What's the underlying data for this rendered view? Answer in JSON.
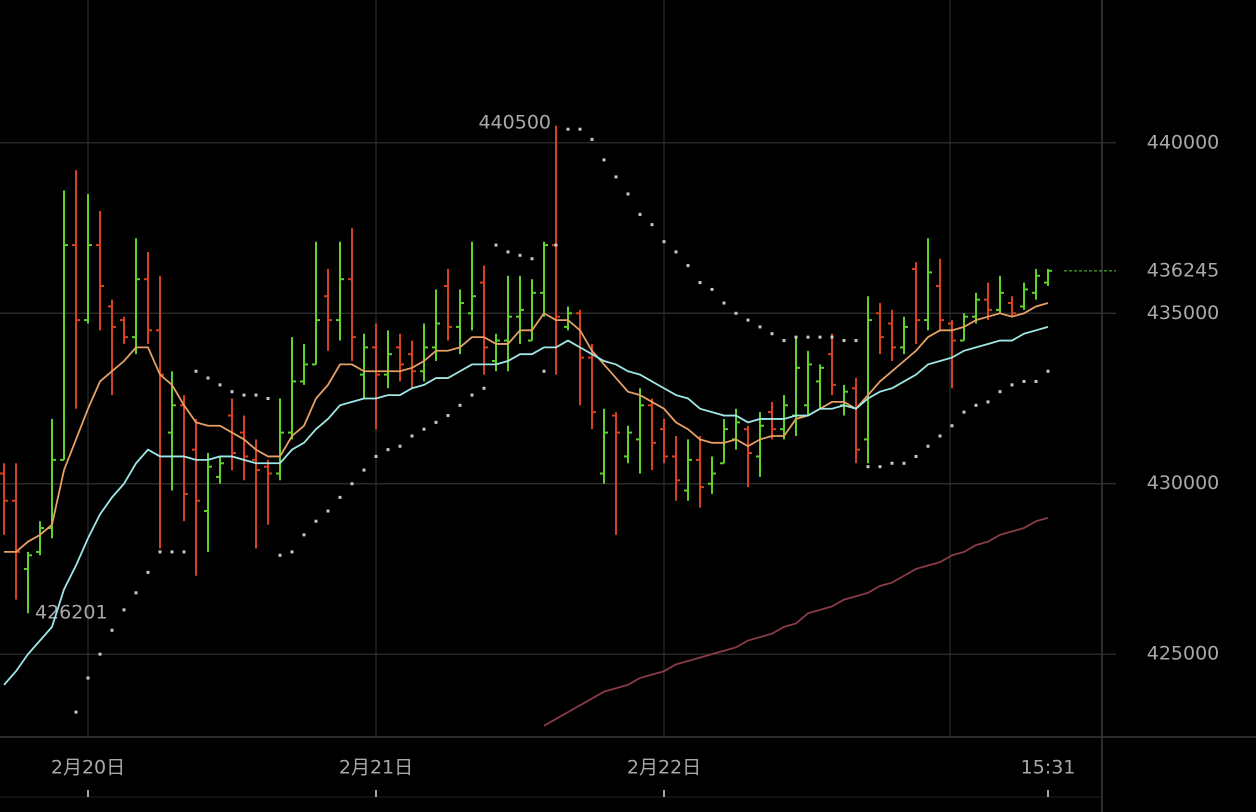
{
  "chart_data": {
    "type": "ohlc",
    "categories": [
      null,
      null,
      null,
      null,
      null,
      null,
      null,
      "2月20日",
      null,
      null,
      null,
      null,
      null,
      null,
      null,
      null,
      null,
      null,
      null,
      null,
      null,
      null,
      null,
      null,
      null,
      null,
      null,
      null,
      null,
      null,
      null,
      "2月21日",
      null,
      null,
      null,
      null,
      null,
      null,
      null,
      null,
      null,
      null,
      null,
      null,
      null,
      null,
      null,
      null,
      null,
      null,
      null,
      null,
      null,
      null,
      null,
      "2月22日",
      null,
      null,
      null,
      null,
      null,
      null,
      null,
      null,
      null,
      null,
      null,
      null,
      null,
      null,
      null,
      null,
      null,
      null,
      null,
      null,
      null,
      null,
      null,
      null,
      null,
      null,
      null,
      null,
      null,
      null,
      null,
      "15:31"
    ],
    "ohlc": [
      [
        430300,
        430600,
        428500,
        429500
      ],
      [
        429500,
        430600,
        426600,
        428000
      ],
      [
        427500,
        428000,
        426201,
        427900
      ],
      [
        428000,
        428900,
        427900,
        428700
      ],
      [
        428700,
        431900,
        428400,
        430700
      ],
      [
        430700,
        438600,
        430700,
        437000
      ],
      [
        437000,
        439200,
        432200,
        434800
      ],
      [
        434800,
        438500,
        434700,
        437000
      ],
      [
        437000,
        438000,
        434500,
        435800
      ],
      [
        435200,
        435400,
        432600,
        434600
      ],
      [
        434800,
        434900,
        434100,
        434300
      ],
      [
        434300,
        437200,
        433800,
        436000
      ],
      [
        436000,
        436800,
        434100,
        434500
      ],
      [
        434500,
        436100,
        428100,
        433200
      ],
      [
        431500,
        433300,
        429800,
        432300
      ],
      [
        432300,
        432600,
        428900,
        429700
      ],
      [
        431000,
        431900,
        427300,
        429500
      ],
      [
        429200,
        430900,
        428000,
        430500
      ],
      [
        430200,
        430800,
        430000,
        430600
      ],
      [
        432000,
        432500,
        430400,
        430900
      ],
      [
        431500,
        432000,
        430100,
        430800
      ],
      [
        430700,
        431300,
        428100,
        430400
      ],
      [
        430500,
        430700,
        428800,
        430300
      ],
      [
        430300,
        432500,
        430100,
        431500
      ],
      [
        431500,
        434300,
        431300,
        433000
      ],
      [
        433000,
        434100,
        432900,
        433500
      ],
      [
        433500,
        437100,
        433500,
        434800
      ],
      [
        435500,
        436300,
        433900,
        434800
      ],
      [
        434800,
        437100,
        434200,
        436000
      ],
      [
        436000,
        437500,
        433600,
        434300
      ],
      [
        433200,
        434400,
        432500,
        434000
      ],
      [
        434000,
        434700,
        431600,
        433200
      ],
      [
        433200,
        434500,
        432800,
        433800
      ],
      [
        434000,
        434400,
        433000,
        433500
      ],
      [
        433800,
        434200,
        432800,
        433300
      ],
      [
        433300,
        434700,
        433000,
        434000
      ],
      [
        434000,
        435700,
        433600,
        434700
      ],
      [
        435800,
        436300,
        434200,
        434600
      ],
      [
        434600,
        435700,
        433800,
        435300
      ],
      [
        435000,
        437100,
        434500,
        435500
      ],
      [
        435900,
        436400,
        433200,
        434000
      ],
      [
        433600,
        434400,
        433300,
        434200
      ],
      [
        434200,
        436100,
        433300,
        434900
      ],
      [
        434900,
        436100,
        434100,
        435100
      ],
      [
        434200,
        436000,
        434200,
        435600
      ],
      [
        435600,
        437100,
        434900,
        437000
      ],
      [
        437000,
        440500,
        433200,
        434900
      ],
      [
        434600,
        435200,
        434500,
        435000
      ],
      [
        435000,
        435100,
        432300,
        433700
      ],
      [
        433700,
        434100,
        431600,
        432100
      ],
      [
        430300,
        432200,
        430000,
        431500
      ],
      [
        432000,
        432100,
        428500,
        431500
      ],
      [
        430800,
        431700,
        430600,
        431500
      ],
      [
        431300,
        432800,
        430300,
        432300
      ],
      [
        432300,
        432500,
        430400,
        431200
      ],
      [
        431600,
        431900,
        430600,
        430800
      ],
      [
        430800,
        431400,
        429500,
        430100
      ],
      [
        429800,
        431300,
        429500,
        430700
      ],
      [
        430700,
        431400,
        429300,
        429900
      ],
      [
        430000,
        430800,
        429700,
        430300
      ],
      [
        430600,
        431900,
        430600,
        431600
      ],
      [
        431300,
        432200,
        431000,
        431800
      ],
      [
        431600,
        431700,
        429900,
        430900
      ],
      [
        430800,
        432100,
        430200,
        431700
      ],
      [
        432100,
        432400,
        431300,
        431600
      ],
      [
        431600,
        432600,
        431300,
        432300
      ],
      [
        432000,
        434300,
        431400,
        433400
      ],
      [
        432300,
        433900,
        432000,
        433500
      ],
      [
        433000,
        433500,
        432200,
        433400
      ],
      [
        433800,
        434400,
        432600,
        432900
      ],
      [
        432300,
        432900,
        432000,
        432700
      ],
      [
        432800,
        433100,
        430600,
        431000
      ],
      [
        431300,
        435500,
        430600,
        434800
      ],
      [
        435000,
        435300,
        433800,
        434300
      ],
      [
        434700,
        435100,
        433600,
        434000
      ],
      [
        434000,
        434900,
        433800,
        434600
      ],
      [
        436300,
        436500,
        434100,
        434800
      ],
      [
        434800,
        437200,
        434500,
        436200
      ],
      [
        435800,
        436600,
        434500,
        434800
      ],
      [
        434700,
        434800,
        432800,
        434200
      ],
      [
        434200,
        435000,
        434200,
        434900
      ],
      [
        434900,
        435600,
        434700,
        435400
      ],
      [
        435400,
        435900,
        434800,
        435100
      ],
      [
        435100,
        436100,
        435000,
        435600
      ],
      [
        435300,
        435500,
        434900,
        435000
      ],
      [
        435200,
        435900,
        435100,
        435700
      ],
      [
        435600,
        436300,
        435400,
        436100
      ],
      [
        435900,
        436300,
        435800,
        436245
      ]
    ],
    "up_color": "#5ed12c",
    "down_color": "#d8411f",
    "lines": [
      {
        "color": "#e6a064",
        "values": [
          428000,
          428000,
          428300,
          428500,
          428800,
          430400,
          431300,
          432200,
          433000,
          433300,
          433600,
          434000,
          434000,
          433200,
          432900,
          432300,
          431800,
          431700,
          431700,
          431500,
          431300,
          431000,
          430800,
          430800,
          431400,
          431700,
          432500,
          432900,
          433500,
          433500,
          433300,
          433300,
          433300,
          433300,
          433400,
          433600,
          433900,
          433900,
          434000,
          434300,
          434300,
          434100,
          434100,
          434500,
          434500,
          435000,
          434800,
          434800,
          434500,
          433900,
          433500,
          433100,
          432700,
          432600,
          432400,
          432200,
          431800,
          431600,
          431300,
          431200,
          431200,
          431300,
          431100,
          431300,
          431400,
          431400,
          431900,
          432000,
          432200,
          432400,
          432400,
          432200,
          432600,
          433000,
          433300,
          433600,
          433900,
          434300,
          434500,
          434500,
          434600,
          434800,
          434900,
          435000,
          434900,
          435000,
          435200,
          435300
        ]
      },
      {
        "color": "#9fe6e6",
        "values": [
          424100,
          424500,
          425000,
          425400,
          425800,
          426900,
          427600,
          428400,
          429100,
          429600,
          430000,
          430600,
          431000,
          430800,
          430800,
          430800,
          430700,
          430700,
          430800,
          430800,
          430700,
          430600,
          430600,
          430600,
          431000,
          431200,
          431600,
          431900,
          432300,
          432400,
          432500,
          432500,
          432600,
          432600,
          432800,
          432900,
          433100,
          433100,
          433300,
          433500,
          433500,
          433500,
          433600,
          433800,
          433800,
          434000,
          434000,
          434200,
          434000,
          433800,
          433600,
          433500,
          433300,
          433200,
          433000,
          432800,
          432600,
          432500,
          432200,
          432100,
          432000,
          432000,
          431800,
          431900,
          431900,
          431900,
          432000,
          432000,
          432200,
          432200,
          432300,
          432200,
          432500,
          432700,
          432800,
          433000,
          433200,
          433500,
          433600,
          433700,
          433900,
          434000,
          434100,
          434200,
          434200,
          434400,
          434500,
          434600
        ]
      },
      {
        "color": "#8a3c46",
        "values": [
          null,
          null,
          null,
          null,
          null,
          null,
          null,
          null,
          null,
          null,
          null,
          null,
          null,
          null,
          null,
          null,
          null,
          null,
          null,
          null,
          null,
          null,
          null,
          null,
          null,
          null,
          null,
          null,
          null,
          null,
          null,
          null,
          null,
          null,
          null,
          null,
          null,
          null,
          null,
          null,
          null,
          null,
          null,
          null,
          null,
          422900,
          423100,
          423300,
          423500,
          423700,
          423900,
          424000,
          424100,
          424300,
          424400,
          424500,
          424700,
          424800,
          424900,
          425000,
          425100,
          425200,
          425400,
          425500,
          425600,
          425800,
          425900,
          426200,
          426300,
          426400,
          426600,
          426700,
          426800,
          427000,
          427100,
          427300,
          427500,
          427600,
          427700,
          427900,
          428000,
          428200,
          428300,
          428500,
          428600,
          428700,
          428900,
          429000
        ]
      }
    ],
    "sar": {
      "color": "#c8c8c8",
      "values": [
        null,
        null,
        null,
        null,
        null,
        null,
        423300,
        424300,
        425000,
        425700,
        426300,
        426800,
        427400,
        428000,
        428000,
        428000,
        433300,
        433100,
        432900,
        432700,
        432600,
        432600,
        432500,
        427900,
        428000,
        428500,
        428900,
        429200,
        429600,
        430000,
        430400,
        430800,
        431000,
        431100,
        431400,
        431600,
        431800,
        432000,
        432300,
        432600,
        432800,
        437000,
        436800,
        436700,
        436600,
        433300,
        437000,
        440400,
        440400,
        440100,
        439500,
        439000,
        438500,
        437900,
        437600,
        437100,
        436800,
        436400,
        435900,
        435700,
        435300,
        435000,
        434800,
        434600,
        434400,
        434200,
        434300,
        434300,
        434300,
        434300,
        434200,
        434200,
        430500,
        430500,
        430600,
        430600,
        430800,
        431100,
        431400,
        431700,
        432100,
        432300,
        432400,
        432700,
        432900,
        433000,
        433000,
        433300
      ]
    },
    "ylim": [
      422570,
      444190
    ],
    "yticks": [
      425000,
      430000,
      435000,
      440000
    ],
    "grid": true
  }
}
